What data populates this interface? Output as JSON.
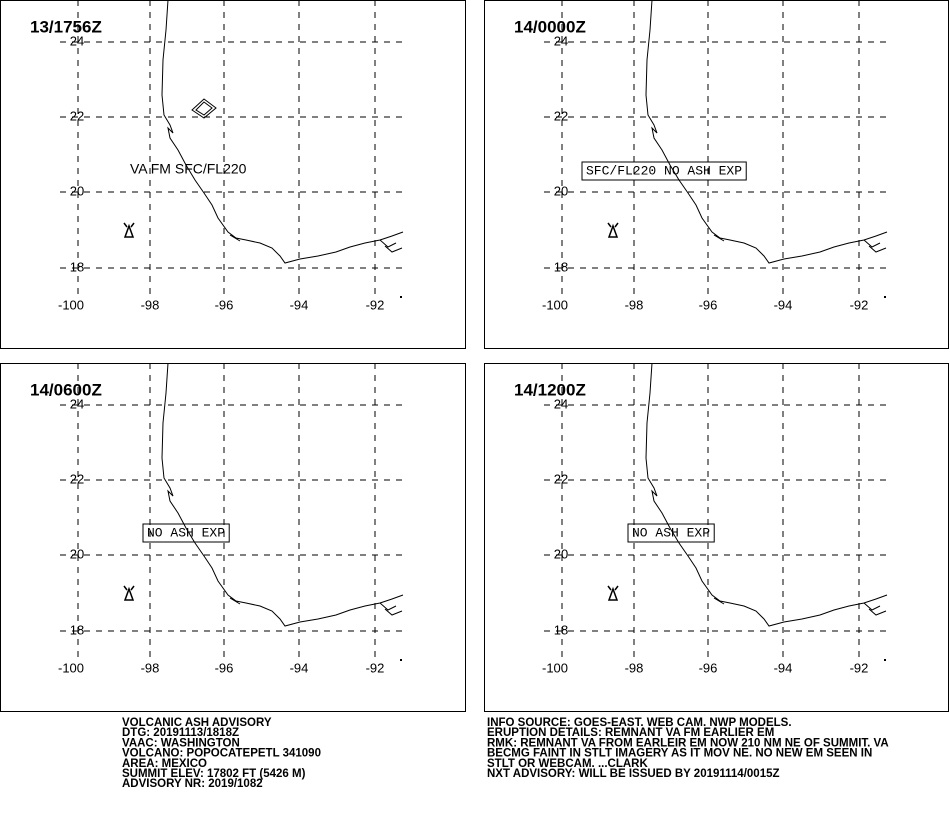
{
  "panels": [
    {
      "time": "13/1756Z",
      "annotation": "VA FM SFC/FL220",
      "lat_labels": [
        "24",
        "22",
        "20",
        "18"
      ],
      "lon_labels": [
        "-100",
        "-98",
        "-96",
        "-94",
        "-92"
      ]
    },
    {
      "time": "14/0000Z",
      "annotation": "SFC/FL220 NO ASH EXP",
      "lat_labels": [
        "24",
        "22",
        "20",
        "18"
      ],
      "lon_labels": [
        "-100",
        "-98",
        "-96",
        "-94",
        "-92"
      ]
    },
    {
      "time": "14/0600Z",
      "annotation": "NO ASH EXP",
      "lat_labels": [
        "24",
        "22",
        "20",
        "18"
      ],
      "lon_labels": [
        "-100",
        "-98",
        "-96",
        "-94",
        "-92"
      ]
    },
    {
      "time": "14/1200Z",
      "annotation": "NO ASH EXP",
      "lat_labels": [
        "24",
        "22",
        "20",
        "18"
      ],
      "lon_labels": [
        "-100",
        "-98",
        "-96",
        "-94",
        "-92"
      ]
    }
  ],
  "advisory": {
    "left": [
      "VOLCANIC ASH ADVISORY",
      "DTG: 20191113/1818Z",
      "VAAC: WASHINGTON",
      "VOLCANO: POPOCATEPETL 341090",
      "AREA: MEXICO",
      "SUMMIT ELEV: 17802 FT (5426 M)",
      "ADVISORY NR: 2019/1082"
    ],
    "right": [
      "INFO SOURCE: GOES-EAST. WEB CAM. NWP MODELS.",
      "ERUPTION DETAILS: REMNANT VA FM EARLIER EM",
      "RMK: REMNANT VA FROM EARLEIR EM NOW 210 NM NE OF SUMMIT. VA",
      "BECMG FAINT IN STLT IMAGERY AS IT MOV NE. NO NEW EM SEEN IN",
      "STLT OR WEBCAM. ...CLARK",
      "NXT ADVISORY: WILL BE ISSUED BY 20191114/0015Z"
    ]
  }
}
